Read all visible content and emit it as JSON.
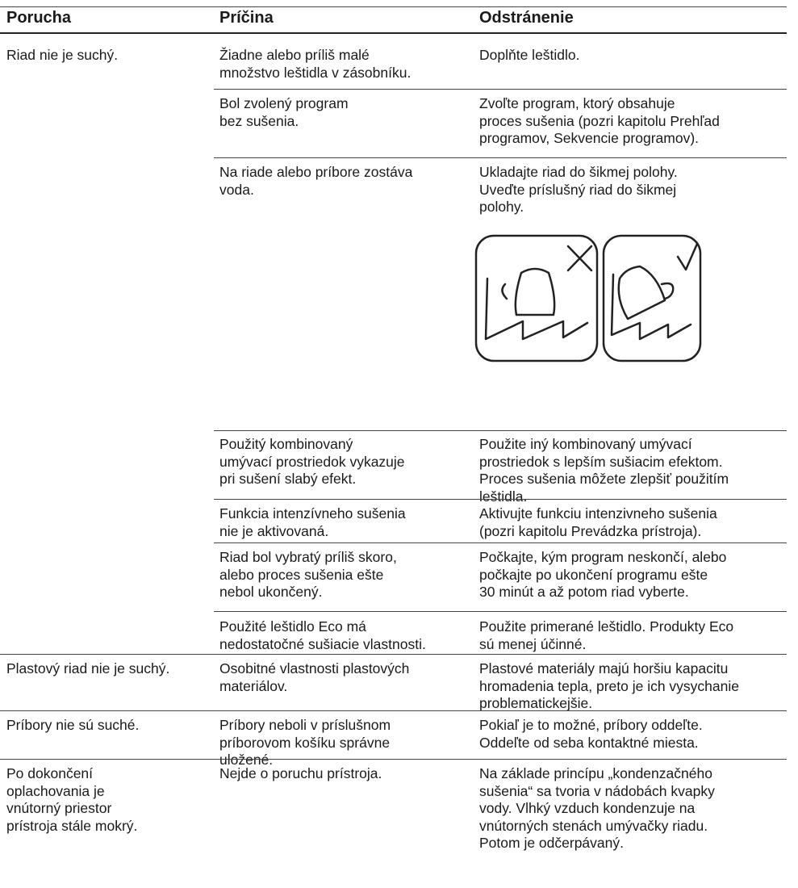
{
  "table": {
    "header": [
      "Porucha",
      "Príčina",
      "Odstránenie"
    ],
    "rows": [
      {
        "problem": [
          "Riad nie je suchý."
        ],
        "causes": [
          {
            "cause": [
              "Žiadne alebo príliš malé",
              "množstvo leštidla v zásobníku."
            ],
            "remedy": [
              "Doplňte leštidlo."
            ]
          },
          {
            "cause": [
              "Bol zvolený program",
              "bez sušenia."
            ],
            "remedy": [
              "Zvoľte program, ktorý obsahuje",
              "proces sušenia (pozri kapitolu Prehľad",
              "programov, Sekvencie programov)."
            ]
          },
          {
            "cause": [
              "Na riade alebo príbore zostáva",
              "voda."
            ],
            "remedy": [
              "Ukladajte riad do šikmej polohy.",
              "Uveďte príslušný riad do šikmej",
              "polohy."
            ]
          },
          {
            "cause": [
              "Použitý kombinovaný",
              "umývací prostriedok vykazuje",
              "pri sušení slabý efekt."
            ],
            "remedy": [
              "Použite iný kombinovaný umývací",
              "prostriedok s lepším sušiacim efektom.",
              "Proces sušenia môžete zlepšiť použitím",
              "leštidla."
            ]
          },
          {
            "cause": [
              "Funkcia intenzívneho sušenia",
              "nie je aktivovaná."
            ],
            "remedy": [
              "Aktivujte funkciu intenzivneho sušenia",
              "(pozri kapitolu Prevádzka prístroja)."
            ]
          },
          {
            "cause": [
              "Riad bol vybratý príliš skoro,",
              "alebo proces sušenia ešte",
              "nebol ukončený."
            ],
            "remedy": [
              "Počkajte, kým program neskončí, alebo",
              "počkajte po ukončení programu ešte",
              "30 minút a až potom riad vyberte."
            ]
          },
          {
            "cause": [
              "Použité leštidlo Eco má",
              "nedostatočné sušiacie vlastnosti."
            ],
            "remedy": [
              "Použite primerané leštidlo. Produkty Eco",
              "sú menej účinné."
            ]
          }
        ]
      },
      {
        "problem": [
          "Plastový riad nie je suchý."
        ],
        "causes": [
          {
            "cause": [
              "Osobitné vlastnosti plastových",
              "materiálov."
            ],
            "remedy": [
              "Plastové materiály majú horšiu kapacitu",
              "hromadenia tepla, preto je ich vysychanie",
              "problematickejšie."
            ]
          }
        ]
      },
      {
        "problem": [
          "Príbory nie sú suché."
        ],
        "causes": [
          {
            "cause": [
              "Príbory neboli v príslušnom",
              "príborovom košíku správne",
              "uložené."
            ],
            "remedy": [
              "Pokiaľ je to možné, príbory oddeľte.",
              "Oddeľte od seba kontaktné miesta."
            ]
          }
        ]
      },
      {
        "problem": [
          "Po dokončení",
          "oplachovania je",
          "vnútorný priestor",
          "prístroja stále mokrý."
        ],
        "causes": [
          {
            "cause": [
              "Nejde o poruchu prístroja."
            ],
            "remedy": [
              "Na základe princípu „kondenzačného",
              "sušenia“ sa tvoria v nádobách kvapky",
              "vody. Vlhký vzduch kondenzuje na",
              "vnútorných stenách umývačky riadu.",
              "Potom je odčerpávaný."
            ]
          }
        ]
      }
    ]
  }
}
